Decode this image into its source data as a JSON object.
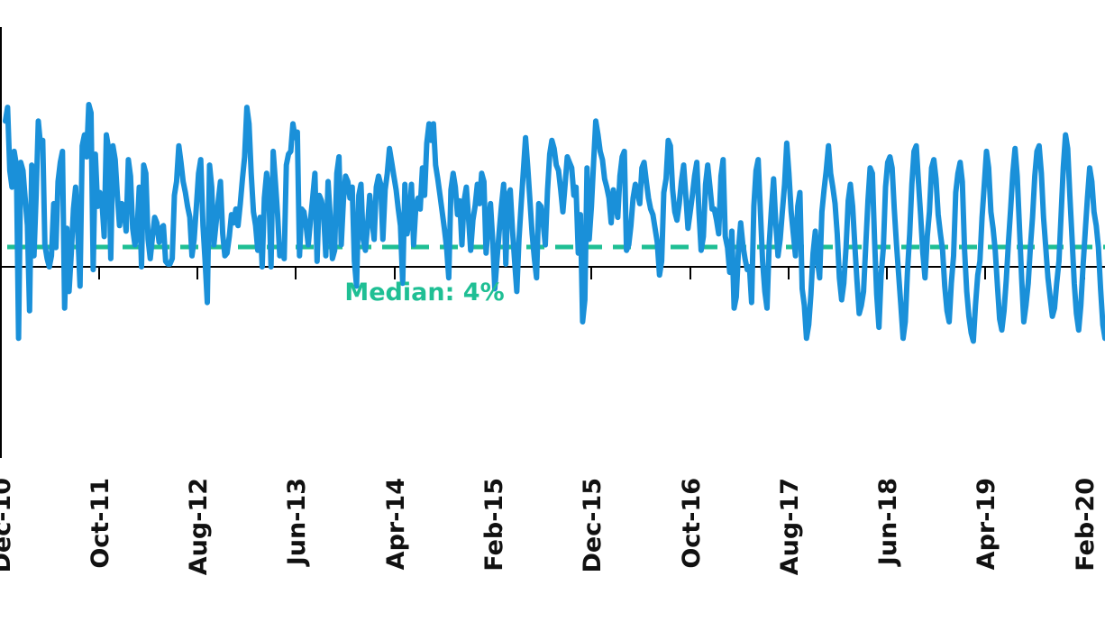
{
  "chart_data": {
    "type": "line",
    "title": "",
    "xlabel": "",
    "ylabel": "",
    "x_tick_labels": [
      "Dec-10",
      "Oct-11",
      "Aug-12",
      "Jun-13",
      "Apr-14",
      "Feb-15",
      "Dec-15",
      "Oct-16",
      "Aug-17",
      "Jun-18",
      "Apr-19",
      "Feb-20"
    ],
    "y_axis": {
      "zero_line": true,
      "ticks_visible": false
    },
    "grid": false,
    "legend": "none",
    "median": {
      "value": 4,
      "label": "Median: 4%"
    },
    "colors": {
      "series": "#1a90d9",
      "median": "#1fbf94",
      "axis": "#000000"
    },
    "series": [
      {
        "values": [
          5.3,
          5.8,
          3.5,
          2.9,
          4.2,
          3.7,
          -2.6,
          3.8,
          3.5,
          2.5,
          1.5,
          -1.6,
          3.7,
          0.4,
          2.6,
          5.3,
          4.4,
          4.6,
          0.8,
          0.3,
          0.0,
          0.4,
          2.3,
          0.7,
          3.1,
          3.8,
          4.2,
          -1.5,
          1.4,
          -0.9,
          0.5,
          2.1,
          2.9,
          1.2,
          -0.7,
          4.4,
          4.8,
          4.0,
          5.9,
          5.6,
          -0.1,
          4.1,
          2.2,
          2.7,
          2.4,
          1.1,
          4.8,
          4.3,
          0.3,
          4.4,
          3.9,
          2.6,
          1.5,
          2.3,
          2.2,
          1.3,
          3.9,
          3.3,
          1.4,
          0.8,
          1.3,
          2.9,
          0.0,
          3.7,
          3.4,
          1.0,
          0.3,
          1.1,
          1.8,
          1.6,
          0.9,
          1.4,
          1.5,
          0.2,
          0.1,
          0.1,
          0.3,
          2.6,
          3.1,
          4.4,
          3.8,
          3.1,
          2.7,
          2.2,
          1.8,
          0.4,
          1.0,
          2.2,
          3.4,
          3.9,
          1.5,
          0.2,
          -1.3,
          3.7,
          2.9,
          0.8,
          1.6,
          2.4,
          3.1,
          1.2,
          0.4,
          0.5,
          1.1,
          1.9,
          1.6,
          2.1,
          1.5,
          2.3,
          3.2,
          4.0,
          5.8,
          5.2,
          3.4,
          2.0,
          1.5,
          0.6,
          1.8,
          0.0,
          2.5,
          3.4,
          2.8,
          0.0,
          4.2,
          3.1,
          1.9,
          0.4,
          0.8,
          0.3,
          3.7,
          4.1,
          4.2,
          5.2,
          4.7,
          4.9,
          0.4,
          2.1,
          2.0,
          1.5,
          0.8,
          1.7,
          2.5,
          3.4,
          0.2,
          2.6,
          2.4,
          1.9,
          0.4,
          3.1,
          1.8,
          0.3,
          0.6,
          3.4,
          4.0,
          0.8,
          2.4,
          3.3,
          3.1,
          2.5,
          2.9,
          0.2,
          -0.7,
          2.6,
          3.0,
          1.0,
          0.6,
          1.5,
          2.6,
          1.7,
          1.0,
          2.9,
          3.3,
          3.0,
          1.0,
          2.8,
          3.4,
          4.3,
          3.8,
          3.3,
          2.8,
          2.1,
          1.5,
          -0.6,
          3.0,
          1.2,
          1.7,
          3.0,
          0.8,
          2.2,
          2.5,
          2.1,
          3.6,
          2.6,
          4.5,
          5.2,
          4.6,
          5.2,
          3.7,
          3.2,
          2.6,
          2.0,
          1.4,
          0.7,
          -0.4,
          2.8,
          3.4,
          2.9,
          1.9,
          2.4,
          0.8,
          2.4,
          2.9,
          1.8,
          0.6,
          1.7,
          2.2,
          3.0,
          2.3,
          3.4,
          3.1,
          0.5,
          1.5,
          2.3,
          1.0,
          -0.8,
          0.3,
          1.3,
          2.2,
          3.0,
          0.1,
          2.6,
          2.8,
          1.4,
          0.2,
          -0.9,
          1.0,
          2.3,
          3.5,
          4.7,
          3.6,
          2.4,
          1.2,
          0.3,
          -0.4,
          2.3,
          2.2,
          1.6,
          0.8,
          2.8,
          4.1,
          4.6,
          4.3,
          3.7,
          3.5,
          2.8,
          2.0,
          3.0,
          4.0,
          3.8,
          3.6,
          2.6,
          2.9,
          0.5,
          1.9,
          -2.0,
          -1.2,
          3.6,
          1.0,
          2.2,
          3.8,
          5.3,
          4.8,
          4.2,
          3.9,
          3.2,
          2.9,
          2.5,
          1.6,
          2.8,
          2.3,
          1.8,
          3.3,
          4.0,
          4.2,
          0.6,
          0.8,
          1.5,
          2.5,
          3.0,
          2.7,
          2.3,
          3.6,
          3.8,
          3.1,
          2.5,
          2.1,
          1.9,
          1.4,
          0.9,
          -0.3,
          0.2,
          2.7,
          3.2,
          4.6,
          4.4,
          2.8,
          2.0,
          1.7,
          2.3,
          3.1,
          3.7,
          2.6,
          1.4,
          2.0,
          2.6,
          3.3,
          3.8,
          2.0,
          0.6,
          1.1,
          3.0,
          3.7,
          2.9,
          2.1,
          2.1,
          1.7,
          1.2,
          3.3,
          3.9,
          1.1,
          0.7,
          -0.2,
          1.3,
          -1.5,
          -1.1,
          0.6,
          1.6,
          0.8,
          0.3,
          -0.1,
          0.0,
          -1.3,
          2.2,
          3.5,
          3.9,
          2.0,
          0.2,
          -0.9,
          -1.5,
          0.8,
          2.1,
          3.2,
          1.6,
          0.4,
          1.0,
          2.0,
          3.0,
          4.5,
          3.4,
          2.0,
          1.2,
          0.4,
          2.2,
          2.7,
          -0.8,
          -1.4,
          -2.6,
          -2.1,
          -1.0,
          0.5,
          1.3,
          0.2,
          -0.4,
          2.0,
          2.8,
          3.5,
          4.4,
          3.4,
          2.9,
          2.3,
          1.2,
          -0.4,
          -1.2,
          -0.6,
          0.7,
          2.4,
          3.0,
          2.2,
          0.8,
          -0.5,
          -1.7,
          -1.4,
          -0.9,
          0.8,
          2.4,
          3.6,
          3.4,
          1.0,
          -1.0,
          -2.2,
          -0.3,
          0.7,
          2.9,
          3.8,
          4.0,
          3.6,
          2.1,
          0.8,
          -0.3,
          -1.4,
          -2.6,
          -2.0,
          -0.2,
          1.2,
          3.0,
          4.2,
          4.4,
          3.1,
          1.9,
          0.5,
          -0.4,
          1.1,
          2.0,
          3.6,
          3.9,
          3.2,
          1.9,
          1.2,
          0.6,
          -0.7,
          -1.6,
          -2.0,
          -0.6,
          0.4,
          2.7,
          3.4,
          3.8,
          3.1,
          0.6,
          -0.9,
          -1.8,
          -2.4,
          -2.7,
          -1.4,
          -0.3,
          0.2,
          1.8,
          3.0,
          4.2,
          3.6,
          2.0,
          1.4,
          0.6,
          -0.7,
          -1.9,
          -2.3,
          -1.6,
          -0.5,
          0.9,
          2.1,
          3.4,
          4.3,
          3.3,
          1.5,
          -0.4,
          -2.0,
          -1.4,
          -0.6,
          0.7,
          1.8,
          3.3,
          4.2,
          4.4,
          3.4,
          1.8,
          0.7,
          -0.4,
          -1.1,
          -1.8,
          -1.5,
          -0.6,
          0.2,
          1.9,
          3.6,
          4.8,
          4.3,
          2.6,
          1.0,
          -0.6,
          -1.7,
          -2.3,
          -1.4,
          0.0,
          1.3,
          2.5,
          3.6,
          3.1,
          2.0,
          1.5,
          0.7,
          -0.8,
          -2.1,
          -2.6
        ]
      }
    ]
  }
}
